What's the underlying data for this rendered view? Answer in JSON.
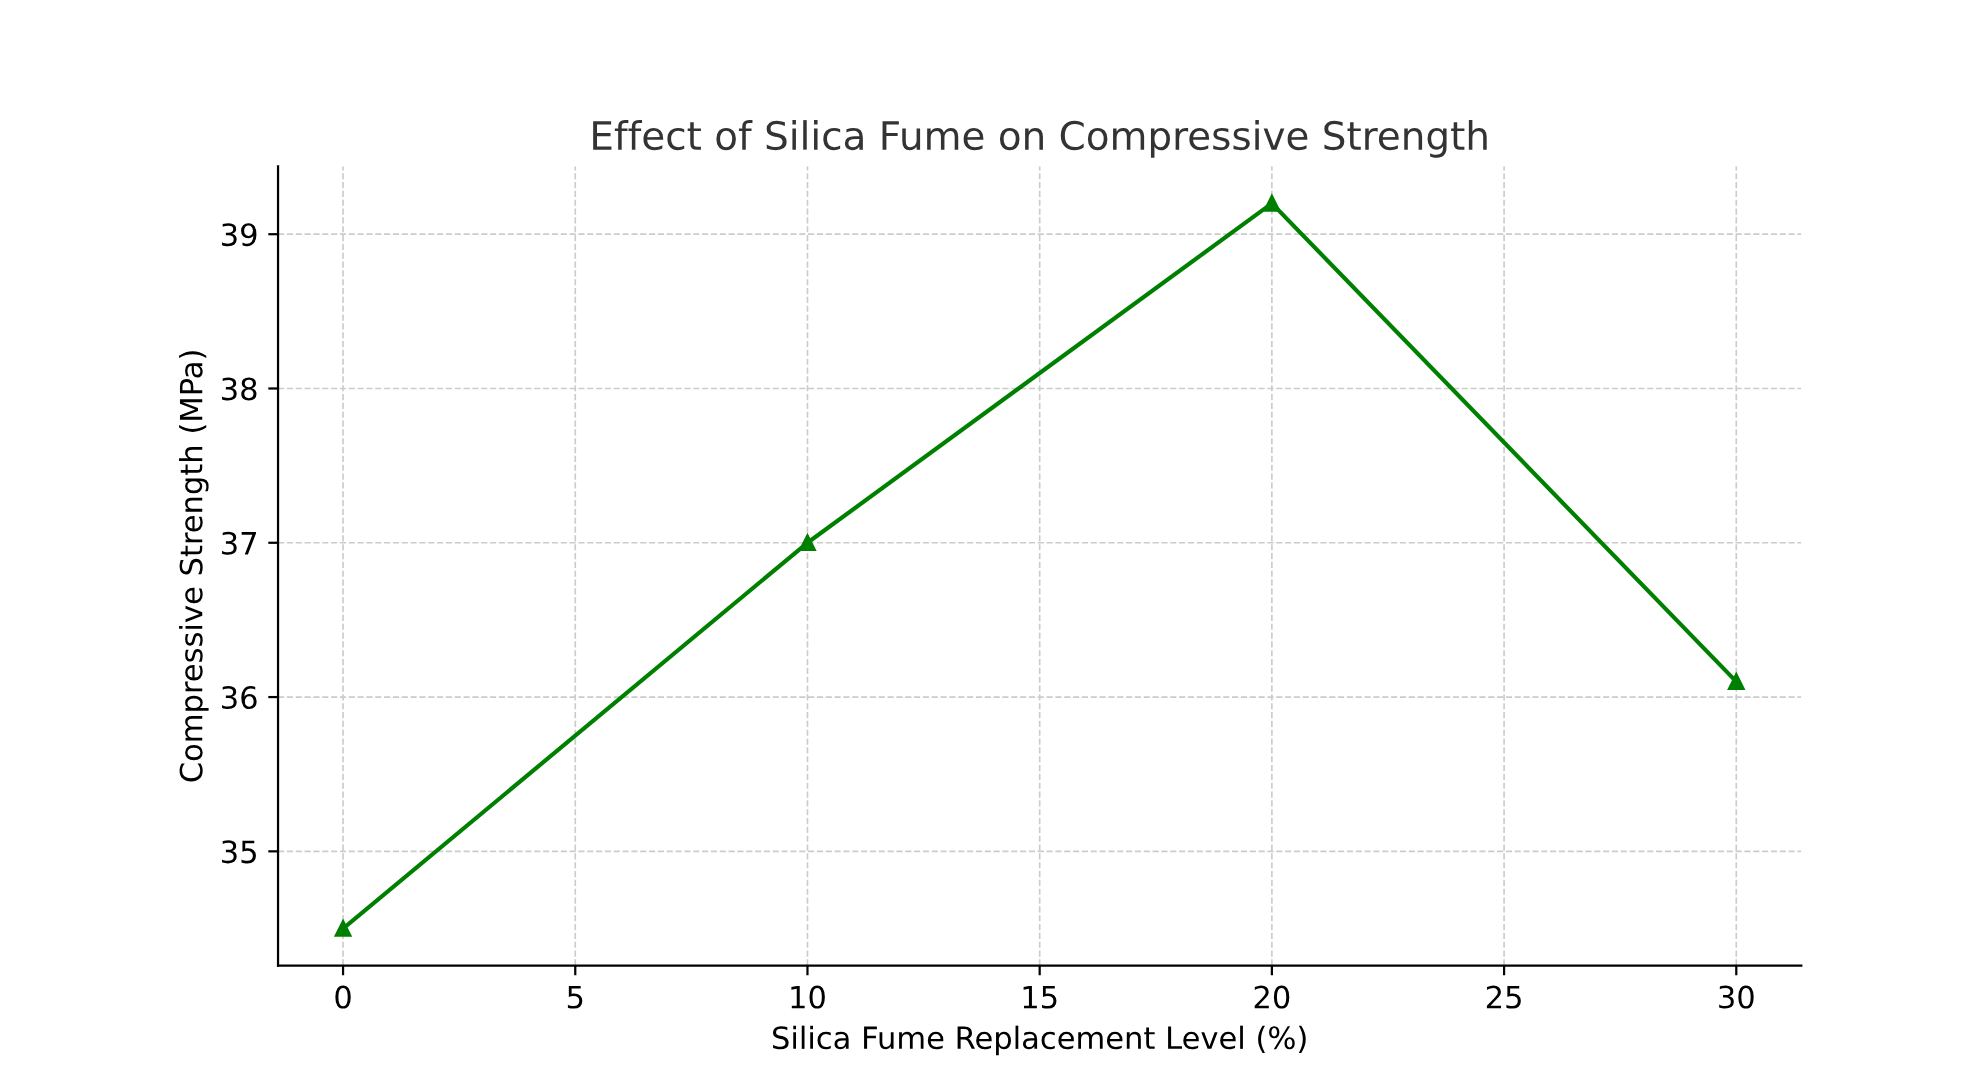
{
  "chart_data": {
    "type": "line",
    "title": "Effect of Silica Fume on Compressive Strength",
    "xlabel": "Silica Fume Replacement Level (%)",
    "ylabel": "Compressive Strength (MPa)",
    "x": [
      0,
      10,
      20,
      30
    ],
    "series": [
      {
        "color": "#008000",
        "values": [
          34.5,
          37.0,
          39.2,
          36.1
        ]
      }
    ],
    "xlim": [
      -1.4,
      31.4
    ],
    "xticks": [
      0,
      5,
      10,
      15,
      20,
      25,
      30
    ],
    "ylim": [
      34.26,
      39.44
    ],
    "yticks": [
      35,
      36,
      37,
      38,
      39
    ],
    "grid": true,
    "marker": "triangle",
    "line_style": "solid"
  }
}
